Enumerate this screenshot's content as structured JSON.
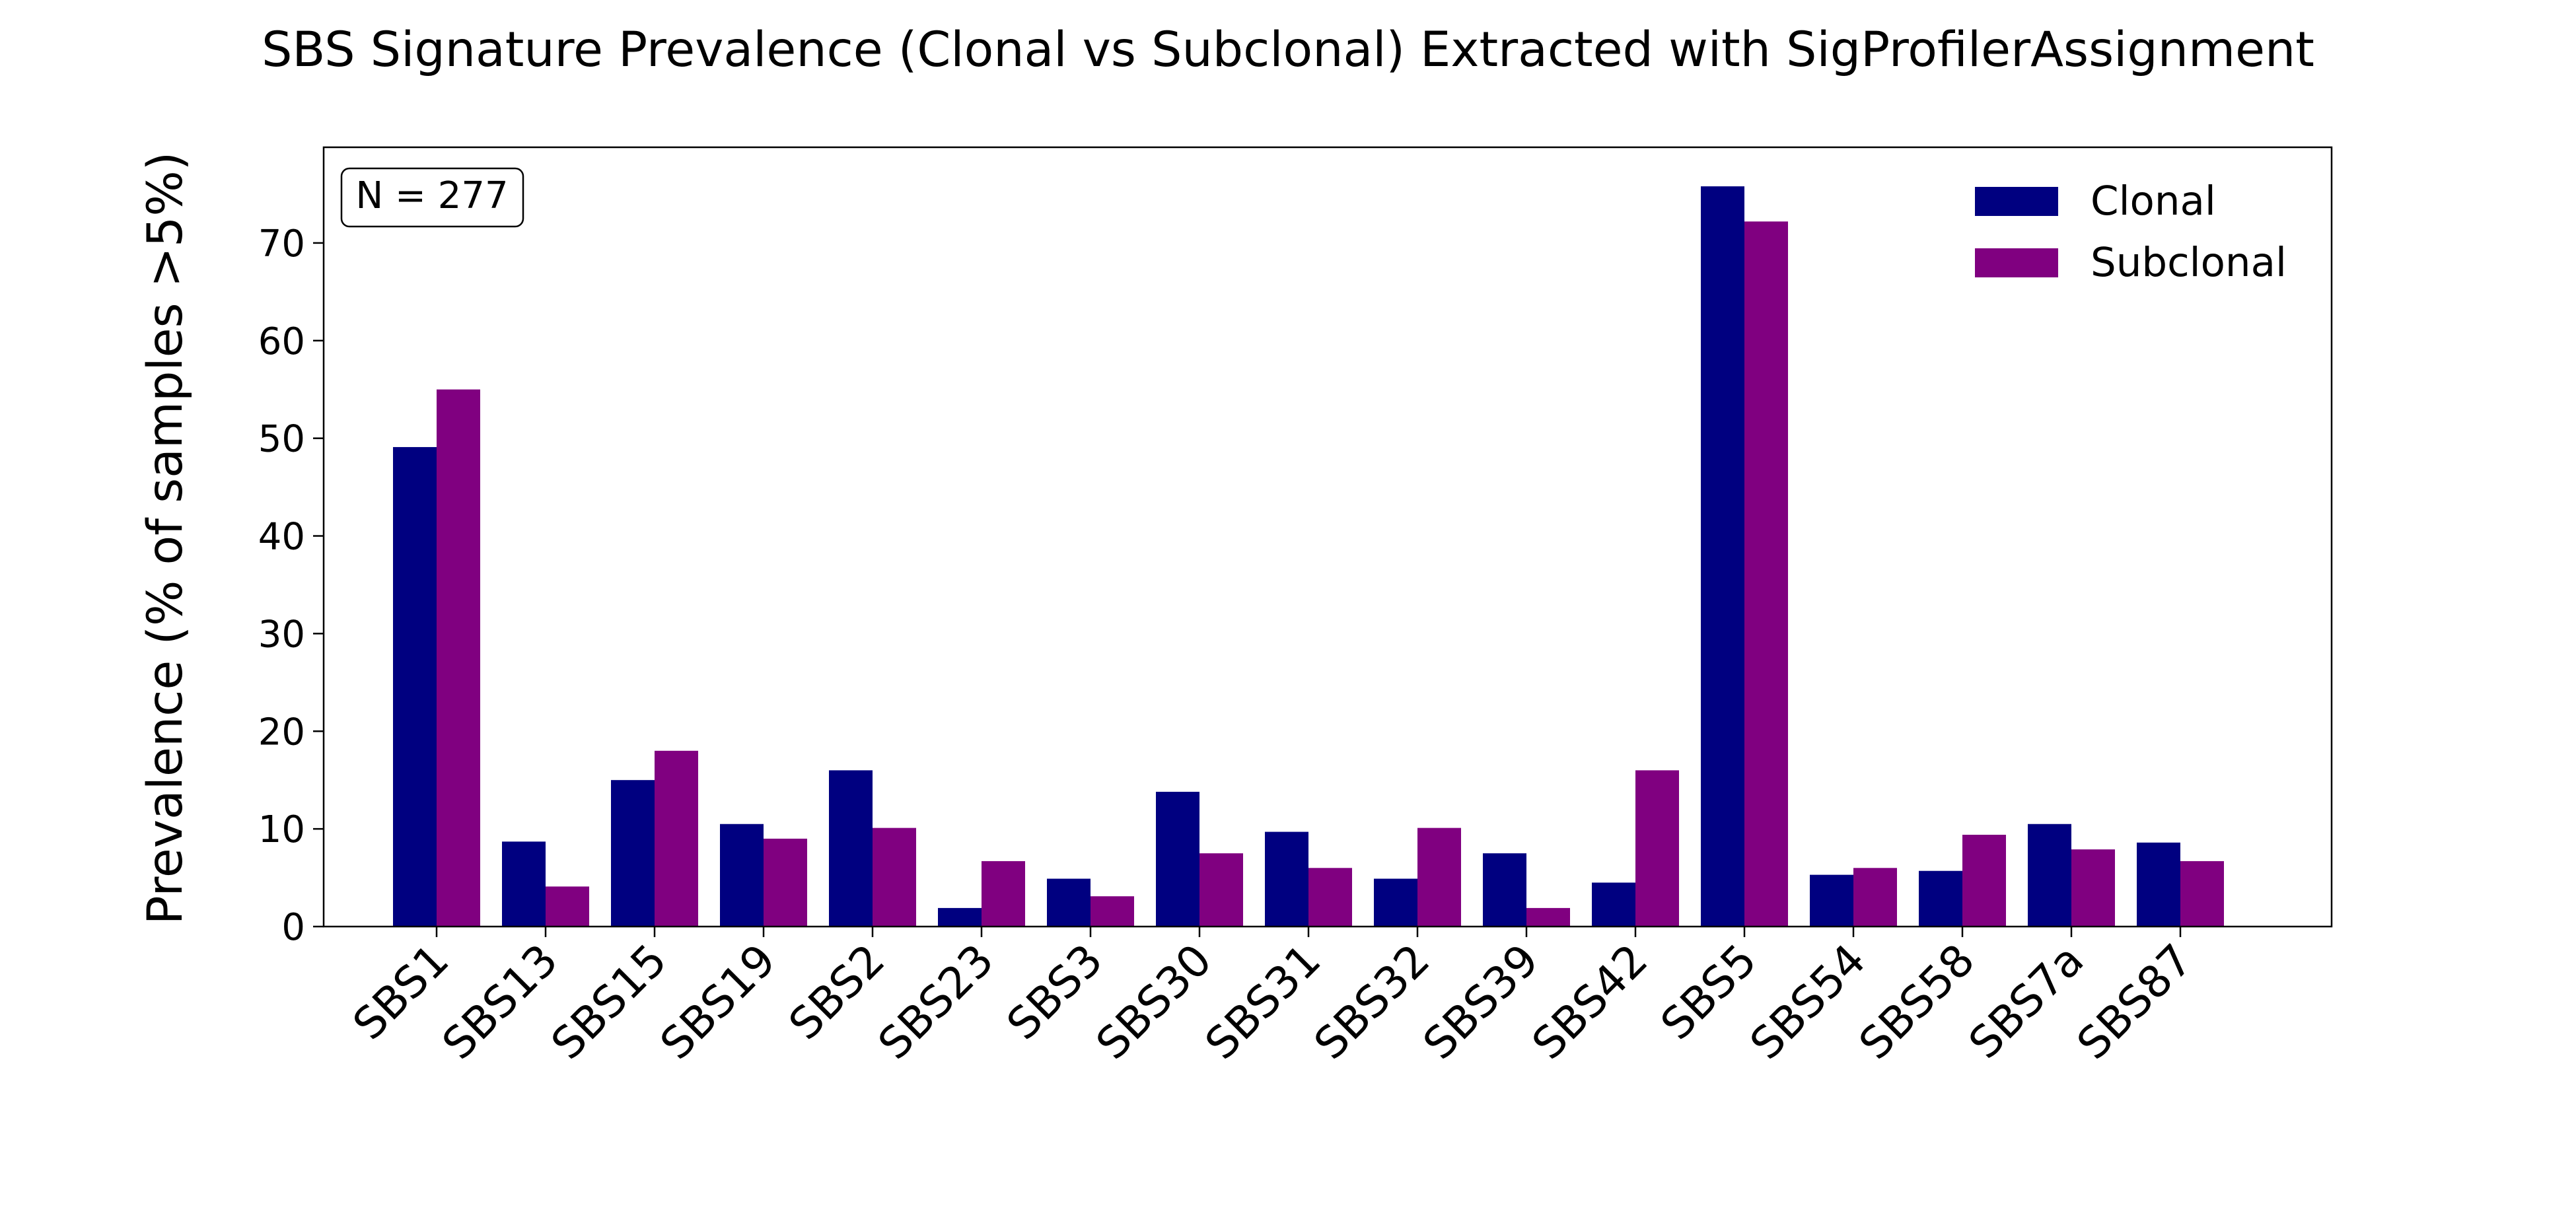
{
  "chart_data": {
    "type": "bar",
    "title": "SBS Signature Prevalence (Clonal vs Subclonal) Extracted with SigProfilerAssignment",
    "xlabel": "",
    "ylabel": "Prevalence (% of samples >5%)",
    "ylim": [
      0,
      79.8
    ],
    "yticks": [
      0,
      10,
      20,
      30,
      40,
      50,
      60,
      70
    ],
    "grid": false,
    "legend_position": "top-right",
    "annotation": "N = 277",
    "categories": [
      "SBS1",
      "SBS13",
      "SBS15",
      "SBS19",
      "SBS2",
      "SBS23",
      "SBS3",
      "SBS30",
      "SBS31",
      "SBS32",
      "SBS39",
      "SBS42",
      "SBS5",
      "SBS54",
      "SBS58",
      "SBS7a",
      "SBS87"
    ],
    "series": [
      {
        "name": "Clonal",
        "color": "#000080",
        "values": [
          49.1,
          8.7,
          15.0,
          10.5,
          16.0,
          1.9,
          4.9,
          13.8,
          9.7,
          4.9,
          7.5,
          4.5,
          75.8,
          5.3,
          5.7,
          10.5,
          8.6
        ]
      },
      {
        "name": "Subclonal",
        "color": "#800080",
        "values": [
          55.0,
          4.1,
          18.0,
          9.0,
          10.1,
          6.7,
          3.1,
          7.5,
          6.0,
          10.1,
          1.9,
          16.0,
          72.2,
          6.0,
          9.4,
          7.9,
          6.7
        ]
      }
    ]
  }
}
